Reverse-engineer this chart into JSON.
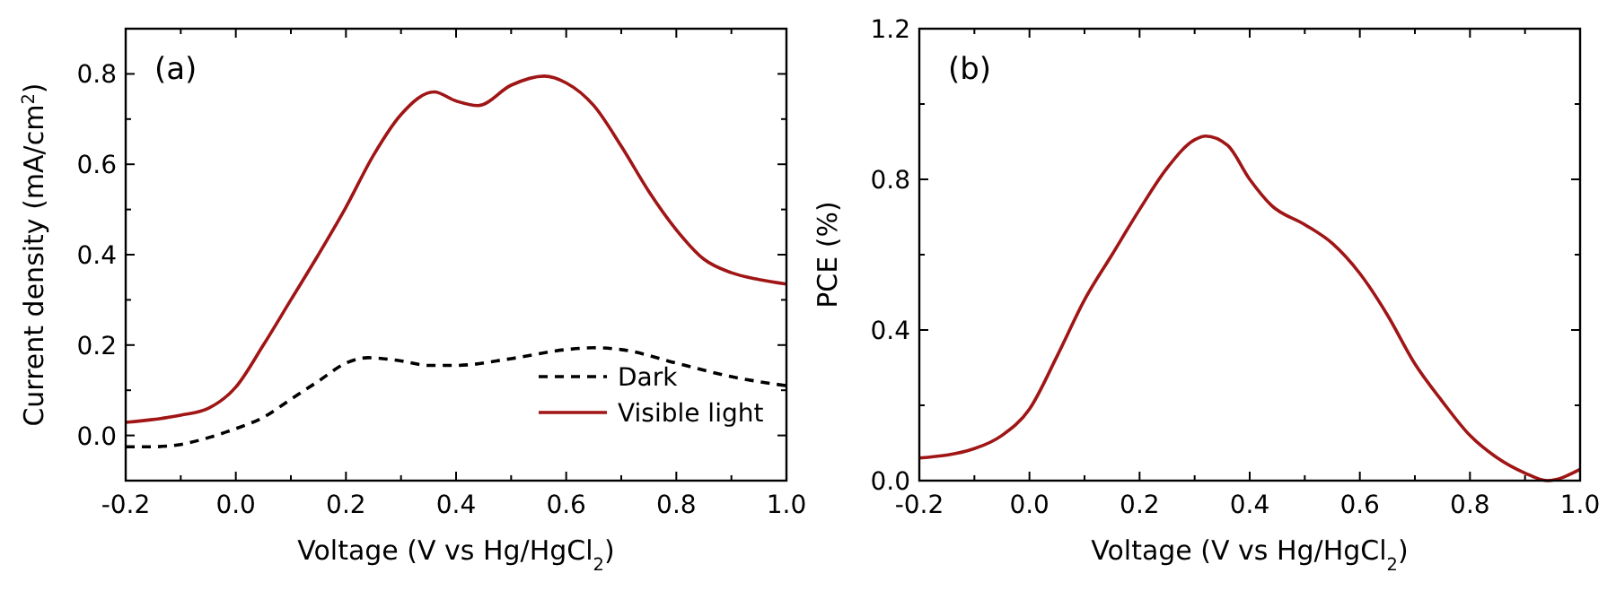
{
  "chart_data": [
    {
      "type": "line",
      "xlabel": "Voltage (V vs Hg/HgCl$_{2}$)",
      "ylabel": "Current density (mA/cm$^{2}$)",
      "annotations": [
        "(a)"
      ],
      "legend": "bottom right",
      "xlim": [
        -0.2,
        1.0
      ],
      "ylim": [
        -0.1,
        0.9
      ],
      "xticks": [
        -0.2,
        {
          "value": -0.1,
          "label": null
        },
        {
          "value": 0,
          "label": "0.0"
        },
        {
          "value": 0.1,
          "label": null
        },
        0.2,
        {
          "value": 0.3,
          "label": null
        },
        0.4,
        {
          "value": 0.5,
          "label": null
        },
        0.6,
        {
          "value": 0.7,
          "label": null
        },
        0.8,
        {
          "value": 0.9,
          "label": null
        },
        {
          "value": 1,
          "label": "1.0"
        }
      ],
      "yticks": [
        {
          "value": -0.1,
          "label": null
        },
        {
          "value": 0,
          "label": "0.0"
        },
        {
          "value": 0.1,
          "label": null
        },
        0.2,
        {
          "value": 0.3,
          "label": null
        },
        0.4,
        {
          "value": 0.5,
          "label": null
        },
        0.6,
        {
          "value": 0.7,
          "label": null
        },
        0.8,
        {
          "value": 0.9,
          "label": null
        }
      ],
      "series": [
        {
          "name": "Dark",
          "color": "#000000",
          "line_style": "dashed",
          "x": [
            -0.2,
            -0.15,
            -0.1,
            -0.05,
            0.0,
            0.05,
            0.1,
            0.15,
            0.2,
            0.24,
            0.3,
            0.35,
            0.4,
            0.5,
            0.6,
            0.65,
            0.7,
            0.8,
            0.9,
            1.0
          ],
          "values": [
            -0.025,
            -0.025,
            -0.02,
            -0.005,
            0.015,
            0.04,
            0.08,
            0.12,
            0.16,
            0.172,
            0.165,
            0.155,
            0.155,
            0.17,
            0.19,
            0.194,
            0.19,
            0.16,
            0.13,
            0.11
          ]
        },
        {
          "name": "Visible light",
          "color": "#a01515",
          "line_style": "solid",
          "x": [
            -0.2,
            -0.1,
            -0.05,
            0.0,
            0.05,
            0.1,
            0.15,
            0.2,
            0.25,
            0.3,
            0.36,
            0.4,
            0.44,
            0.5,
            0.56,
            0.6,
            0.65,
            0.7,
            0.75,
            0.8,
            0.85,
            0.9,
            0.95,
            1.0
          ],
          "values": [
            0.029,
            0.045,
            0.06,
            0.107,
            0.2,
            0.3,
            0.4,
            0.505,
            0.62,
            0.71,
            0.76,
            0.74,
            0.73,
            0.775,
            0.795,
            0.78,
            0.73,
            0.64,
            0.54,
            0.455,
            0.39,
            0.36,
            0.345,
            0.335
          ]
        }
      ]
    },
    {
      "type": "line",
      "xlabel": "Voltage (V vs Hg/HgCl$_{2}$)",
      "ylabel": "PCE (%)",
      "annotations": [
        "(b)"
      ],
      "xlim": [
        -0.2,
        1.0
      ],
      "ylim": [
        0,
        1.2
      ],
      "xticks": [
        -0.2,
        {
          "value": -0.1,
          "label": null
        },
        {
          "value": 0,
          "label": "0.0"
        },
        {
          "value": 0.1,
          "label": null
        },
        0.2,
        {
          "value": 0.3,
          "label": null
        },
        0.4,
        {
          "value": 0.5,
          "label": null
        },
        0.6,
        {
          "value": 0.7,
          "label": null
        },
        0.8,
        {
          "value": 0.9,
          "label": null
        },
        {
          "value": 1,
          "label": "1.0"
        }
      ],
      "yticks": [
        {
          "value": 0,
          "label": "0.0"
        },
        {
          "value": 0.2,
          "label": null
        },
        0.4,
        {
          "value": 0.6,
          "label": null
        },
        0.8,
        {
          "value": 1.0,
          "label": null
        },
        1.2
      ],
      "series": [
        {
          "color": "#a01515",
          "line_style": "solid",
          "x": [
            -0.2,
            -0.1,
            -0.05,
            0.0,
            0.05,
            0.1,
            0.15,
            0.2,
            0.25,
            0.3,
            0.32,
            0.36,
            0.4,
            0.44,
            0.5,
            0.55,
            0.6,
            0.65,
            0.7,
            0.75,
            0.8,
            0.85,
            0.9,
            0.94,
            1.0
          ],
          "values": [
            0.06,
            0.085,
            0.12,
            0.19,
            0.33,
            0.48,
            0.6,
            0.72,
            0.83,
            0.905,
            0.915,
            0.89,
            0.8,
            0.73,
            0.68,
            0.63,
            0.55,
            0.44,
            0.31,
            0.21,
            0.12,
            0.06,
            0.02,
            0.0,
            0.03
          ]
        }
      ]
    }
  ]
}
